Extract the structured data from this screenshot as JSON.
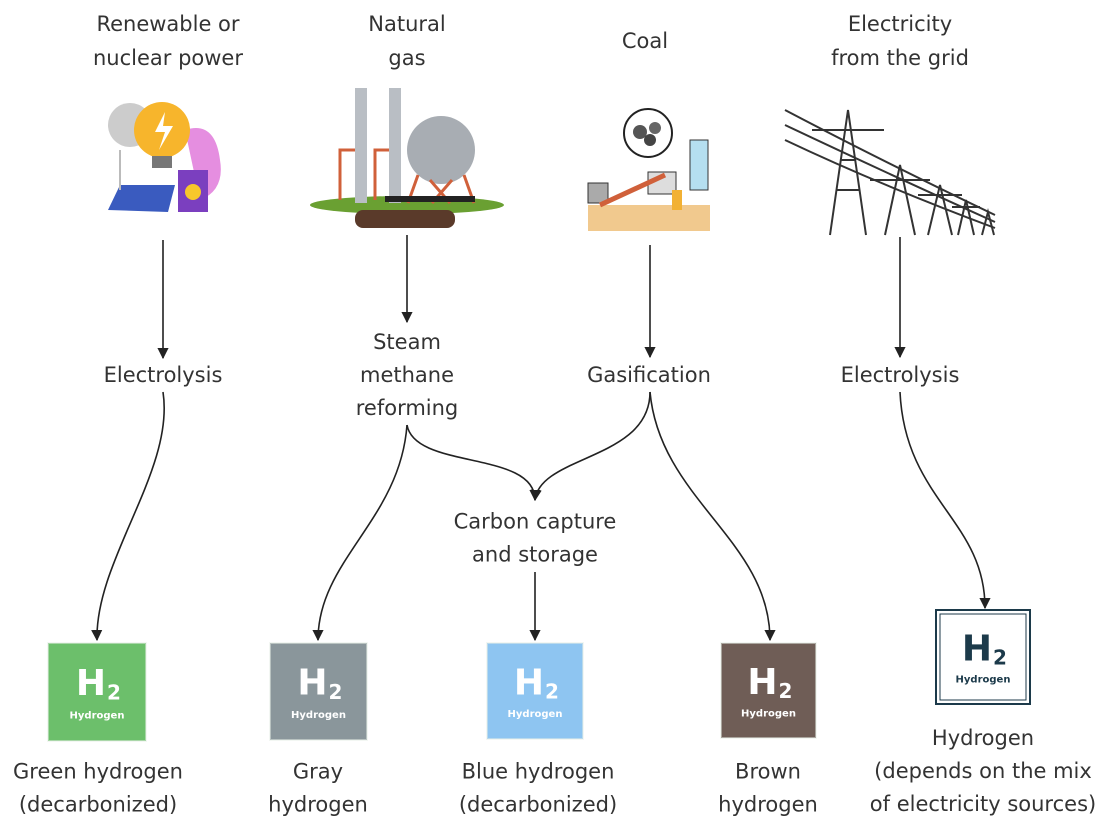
{
  "sources": [
    {
      "lines": [
        "Renewable or",
        "nuclear power"
      ]
    },
    {
      "lines": [
        "Natural",
        "gas"
      ]
    },
    {
      "lines": [
        "Coal"
      ]
    },
    {
      "lines": [
        "Electricity",
        "from the grid"
      ]
    }
  ],
  "processes": [
    {
      "lines": [
        "Electrolysis"
      ]
    },
    {
      "lines": [
        "Steam",
        "methane",
        "reforming"
      ]
    },
    {
      "lines": [
        "Gasification"
      ]
    },
    {
      "lines": [
        "Electrolysis"
      ]
    },
    {
      "lines": [
        "Carbon capture",
        "and storage"
      ]
    }
  ],
  "tiles": [
    {
      "symbol": "H",
      "subscript": "2",
      "label": "Hydrogen",
      "color": "#6cbf6b"
    },
    {
      "symbol": "H",
      "subscript": "2",
      "label": "Hydrogen",
      "color": "#8a969b"
    },
    {
      "symbol": "H",
      "subscript": "2",
      "label": "Hydrogen",
      "color": "#8ec5f1"
    },
    {
      "symbol": "H",
      "subscript": "2",
      "label": "Hydrogen",
      "color": "#6f5d56"
    },
    {
      "symbol": "H",
      "subscript": "2",
      "label": "Hydrogen",
      "color": "#ffffff"
    }
  ],
  "outputs": [
    {
      "lines": [
        "Green hydrogen",
        "(decarbonized)"
      ]
    },
    {
      "lines": [
        "Gray",
        "hydrogen"
      ]
    },
    {
      "lines": [
        "Blue hydrogen",
        "(decarbonized)"
      ]
    },
    {
      "lines": [
        "Brown",
        "hydrogen"
      ]
    },
    {
      "lines": [
        "Hydrogen",
        "(depends on the mix",
        "of electricity sources)"
      ]
    }
  ]
}
